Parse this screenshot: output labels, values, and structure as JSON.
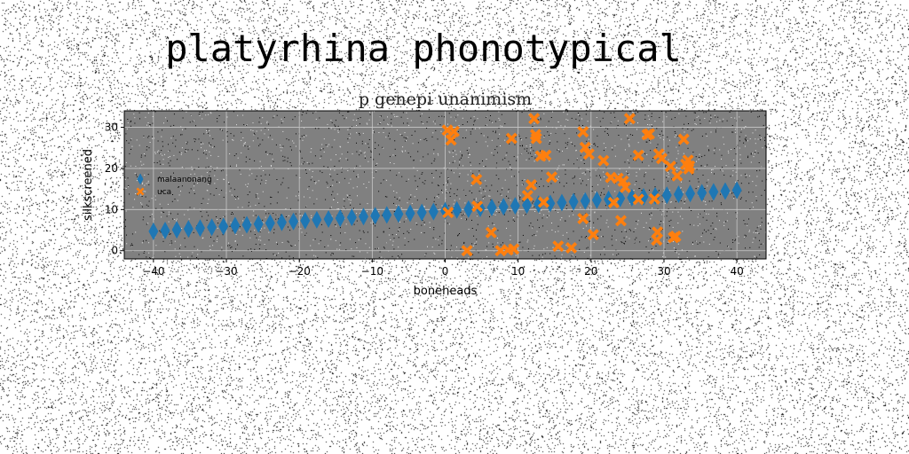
{
  "figure": {
    "suptitle": "platyrhina phonotypical"
  },
  "colors": {
    "background": "#ffffff",
    "plot_bg": "#808080",
    "grid": "#c8c8c8",
    "series_a": "#1f77b4",
    "series_b": "#ff7f0e"
  },
  "chart_data": {
    "type": "scatter",
    "title": "p genepi unanimism",
    "xlabel": "boneheads",
    "ylabel": "silkscreened",
    "xlim": [
      -44,
      44
    ],
    "ylim": [
      -2,
      34
    ],
    "xticks": [
      -40,
      -30,
      -20,
      -10,
      0,
      10,
      20,
      30,
      40
    ],
    "yticks": [
      0,
      10,
      20,
      30
    ],
    "grid": true,
    "legend_position": "center-left",
    "series": [
      {
        "name": "malaanonang",
        "marker": "thin-diamond",
        "color": "#1f77b4",
        "x": [
          -40.0,
          -38.4,
          -36.8,
          -35.2,
          -33.6,
          -32.0,
          -30.4,
          -28.8,
          -27.2,
          -25.6,
          -24.0,
          -22.4,
          -20.8,
          -19.2,
          -17.6,
          -16.0,
          -14.4,
          -12.8,
          -11.2,
          -9.6,
          -8.0,
          -6.4,
          -4.8,
          -3.2,
          -1.6,
          0.0,
          1.6,
          3.2,
          4.8,
          6.4,
          8.0,
          9.6,
          11.2,
          12.8,
          14.4,
          16.0,
          17.6,
          19.2,
          20.8,
          22.4,
          24.0,
          25.6,
          27.2,
          28.8,
          30.4,
          32.0,
          33.6,
          35.2,
          36.8,
          38.4,
          40.0
        ],
        "y": [
          4.7,
          4.9,
          5.1,
          5.3,
          5.5,
          5.7,
          5.9,
          6.1,
          6.3,
          6.5,
          6.7,
          6.9,
          7.1,
          7.3,
          7.5,
          7.7,
          7.9,
          8.1,
          8.3,
          8.5,
          8.7,
          8.9,
          9.1,
          9.3,
          9.5,
          9.7,
          9.9,
          10.1,
          10.3,
          10.5,
          10.7,
          10.9,
          11.1,
          11.3,
          11.5,
          11.7,
          11.9,
          12.1,
          12.3,
          12.5,
          12.7,
          12.9,
          13.1,
          13.3,
          13.5,
          13.7,
          13.9,
          14.1,
          14.3,
          14.5,
          14.7
        ]
      },
      {
        "name": "uca",
        "marker": "x-filled",
        "color": "#ff7f0e",
        "x": [
          0.3,
          0.8,
          1.2,
          0.4,
          3.0,
          4.3,
          4.4,
          6.3,
          7.6,
          8.6,
          9.1,
          9.4,
          11.3,
          11.8,
          12.2,
          12.4,
          12.5,
          13.1,
          13.5,
          13.8,
          14.6,
          15.5,
          17.3,
          18.9,
          18.9,
          19.2,
          19.7,
          20.3,
          21.7,
          22.7,
          23.1,
          23.7,
          24.1,
          24.4,
          24.7,
          25.3,
          26.5,
          26.5,
          27.7,
          28.0,
          28.7,
          29.0,
          29.1,
          29.3,
          29.7,
          30.9,
          31.3,
          31.6,
          31.8,
          32.7,
          33.0,
          33.3,
          33.4,
          33.5
        ],
        "y": [
          29.3,
          26.9,
          29.0,
          9.3,
          0.0,
          17.3,
          10.8,
          4.4,
          0.0,
          0.2,
          27.3,
          0.4,
          13.4,
          16.0,
          32.1,
          28.2,
          27.3,
          23.0,
          11.8,
          23.2,
          17.9,
          1.1,
          0.7,
          28.9,
          7.8,
          25.1,
          23.5,
          3.9,
          21.9,
          17.8,
          11.7,
          17.6,
          7.3,
          16.9,
          15.4,
          32.1,
          23.2,
          12.5,
          28.2,
          28.4,
          12.6,
          2.6,
          4.5,
          23.5,
          22.4,
          20.5,
          3.2,
          3.5,
          18.2,
          27.1,
          21.0,
          22.0,
          19.9,
          20.6
        ]
      }
    ]
  }
}
